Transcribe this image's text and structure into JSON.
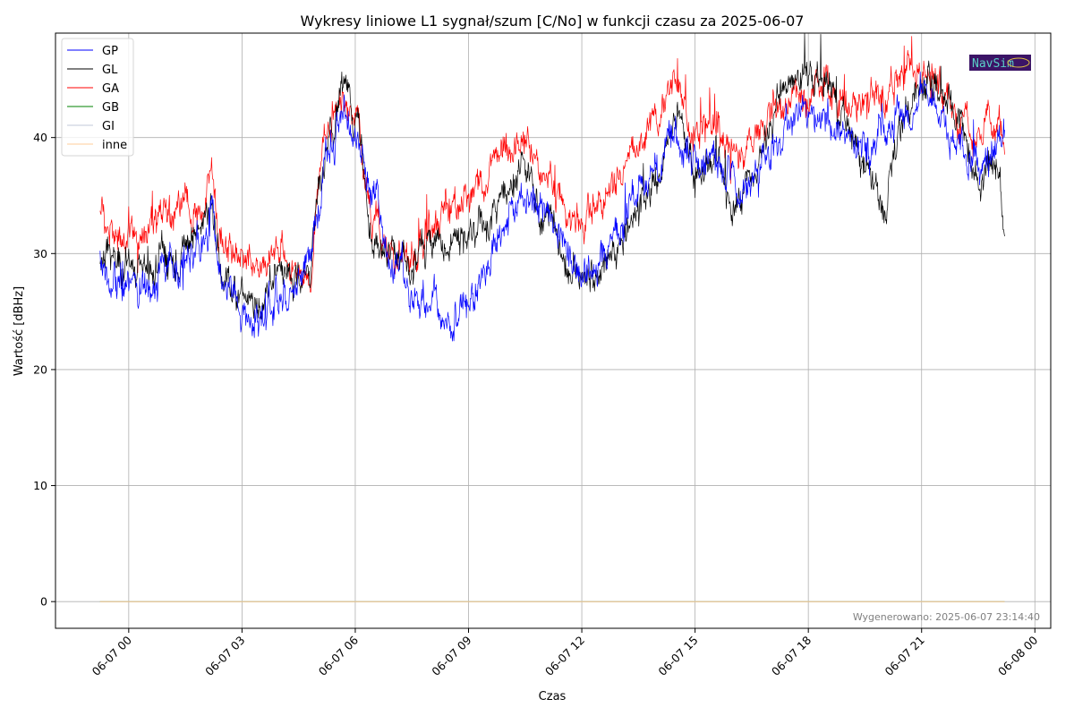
{
  "chart_data": {
    "type": "line",
    "title": "Wykresy liniowe L1 sygnał/szum [C/No] w funkcji czasu za 2025-06-07",
    "xlabel": "Czas",
    "ylabel": "Wartość [dBHz]",
    "x_units": "hours relative to 2025-06-07 00:00",
    "xlim": [
      -1.94,
      24.42
    ],
    "ylim": [
      -2.3,
      49.0
    ],
    "grid": true,
    "legend_position": "top-left",
    "x_ticks": [
      {
        "value": 0,
        "label": "06-07 00"
      },
      {
        "value": 3,
        "label": "06-07 03"
      },
      {
        "value": 6,
        "label": "06-07 06"
      },
      {
        "value": 9,
        "label": "06-07 09"
      },
      {
        "value": 12,
        "label": "06-07 12"
      },
      {
        "value": 15,
        "label": "06-07 15"
      },
      {
        "value": 18,
        "label": "06-07 18"
      },
      {
        "value": 21,
        "label": "06-07 21"
      },
      {
        "value": 24,
        "label": "06-08 00"
      }
    ],
    "y_ticks": [
      {
        "value": 0,
        "label": "0"
      },
      {
        "value": 10,
        "label": "10"
      },
      {
        "value": 20,
        "label": "20"
      },
      {
        "value": 30,
        "label": "30"
      },
      {
        "value": 40,
        "label": "40"
      }
    ],
    "series": [
      {
        "name": "GP",
        "color": "#0000ff",
        "noise": 1.6,
        "x": [
          -0.76,
          -0.5,
          0,
          0.5,
          1,
          1.5,
          2,
          2.2,
          2.5,
          3,
          3.5,
          4,
          4.5,
          4.8,
          5,
          5.3,
          5.7,
          6,
          6.5,
          7,
          7.5,
          8,
          8.5,
          9,
          9.5,
          10,
          10.5,
          11,
          11.5,
          12,
          12.5,
          13,
          13.5,
          14,
          14.5,
          15,
          15.5,
          16,
          16.5,
          17,
          17.5,
          18,
          18.5,
          19,
          19.5,
          20,
          20.5,
          21,
          21.5,
          22,
          22.5,
          23,
          23.2
        ],
        "y": [
          29.5,
          28.0,
          27.0,
          27.5,
          28.5,
          29.5,
          30.5,
          34.0,
          27.5,
          25.0,
          24.0,
          26.5,
          27.5,
          30.0,
          34.0,
          39.0,
          41.5,
          41.0,
          34.5,
          29.0,
          27.0,
          25.5,
          24.5,
          26.0,
          29.5,
          32.5,
          35.0,
          34.0,
          31.0,
          28.5,
          29.5,
          32.0,
          35.5,
          37.0,
          40.5,
          38.0,
          37.5,
          36.0,
          36.5,
          38.5,
          42.0,
          42.5,
          41.5,
          40.0,
          38.5,
          41.0,
          42.5,
          44.0,
          42.5,
          39.5,
          37.5,
          40.0,
          40.0
        ]
      },
      {
        "name": "GL",
        "color": "#000000",
        "noise": 1.5,
        "x": [
          -0.76,
          -0.5,
          0,
          0.5,
          1,
          1.5,
          2,
          2.2,
          2.5,
          3,
          3.5,
          4,
          4.5,
          4.8,
          5,
          5.3,
          5.7,
          6,
          6.5,
          7,
          7.5,
          8,
          8.5,
          9,
          9.5,
          10,
          10.5,
          11,
          11.5,
          12,
          12.5,
          13,
          13.5,
          14,
          14.5,
          15,
          15.5,
          16,
          16.5,
          17,
          17.5,
          18,
          18.5,
          19,
          19.5,
          20,
          20.3,
          20.6,
          21,
          21.5,
          22,
          22.5,
          22.8,
          23,
          23.2
        ],
        "y": [
          29.5,
          30.0,
          29.0,
          28.5,
          29.0,
          30.5,
          32.5,
          34.5,
          27.5,
          26.0,
          25.5,
          28.5,
          27.5,
          28.0,
          35.0,
          40.0,
          43.5,
          42.0,
          31.0,
          29.5,
          29.0,
          30.5,
          31.0,
          31.5,
          33.0,
          35.5,
          37.5,
          33.5,
          29.5,
          28.0,
          28.5,
          31.0,
          34.0,
          37.0,
          42.0,
          36.5,
          38.5,
          34.5,
          37.0,
          40.5,
          45.0,
          45.5,
          45.0,
          41.0,
          38.0,
          34.0,
          38.0,
          43.0,
          45.5,
          44.5,
          41.5,
          35.5,
          38.0,
          37.5,
          31.0
        ]
      },
      {
        "name": "GA",
        "color": "#ff0000",
        "noise": 1.5,
        "x": [
          -0.76,
          -0.5,
          0,
          0.5,
          1,
          1.5,
          2,
          2.2,
          2.5,
          3,
          3.5,
          4,
          4.5,
          4.8,
          5,
          5.3,
          5.7,
          6,
          6.5,
          7,
          7.5,
          8,
          8.5,
          9,
          9.5,
          10,
          10.5,
          11,
          11.5,
          12,
          12.5,
          13,
          13.5,
          14,
          14.5,
          15,
          15.5,
          16,
          16.5,
          17,
          17.5,
          18,
          18.5,
          19,
          19.5,
          20,
          20.5,
          21,
          21.5,
          22,
          22.5,
          23,
          23.2
        ],
        "y": [
          33.5,
          32.0,
          31.5,
          32.0,
          33.5,
          34.5,
          33.0,
          37.5,
          30.0,
          29.5,
          29.0,
          30.5,
          28.0,
          27.5,
          36.0,
          41.5,
          43.0,
          42.0,
          33.0,
          30.0,
          29.5,
          32.0,
          33.5,
          35.0,
          36.5,
          39.5,
          40.0,
          36.5,
          34.5,
          33.0,
          34.5,
          37.0,
          39.0,
          40.5,
          44.5,
          40.5,
          41.5,
          39.0,
          39.5,
          42.0,
          43.5,
          44.0,
          44.5,
          42.5,
          42.5,
          44.0,
          45.0,
          45.0,
          44.5,
          42.0,
          40.0,
          41.5,
          40.5
        ]
      },
      {
        "name": "GB",
        "color": "#008000",
        "noise": 0,
        "x": [
          -0.76,
          23.2
        ],
        "y": [
          0,
          0
        ]
      },
      {
        "name": "GI",
        "color": "#c0c8d8",
        "noise": 0,
        "x": [
          -0.76,
          23.2
        ],
        "y": [
          0,
          0
        ]
      },
      {
        "name": "inne",
        "color": "#ffcc99",
        "noise": 0,
        "x": [
          -0.76,
          23.2
        ],
        "y": [
          0,
          0
        ]
      }
    ]
  },
  "footer": {
    "generated_text": "Wygenerowano: 2025-06-07 23:14:40"
  },
  "logo": {
    "text": "NavSim",
    "bg_color": "#3b1466",
    "text_color": "#5ad0c8"
  }
}
